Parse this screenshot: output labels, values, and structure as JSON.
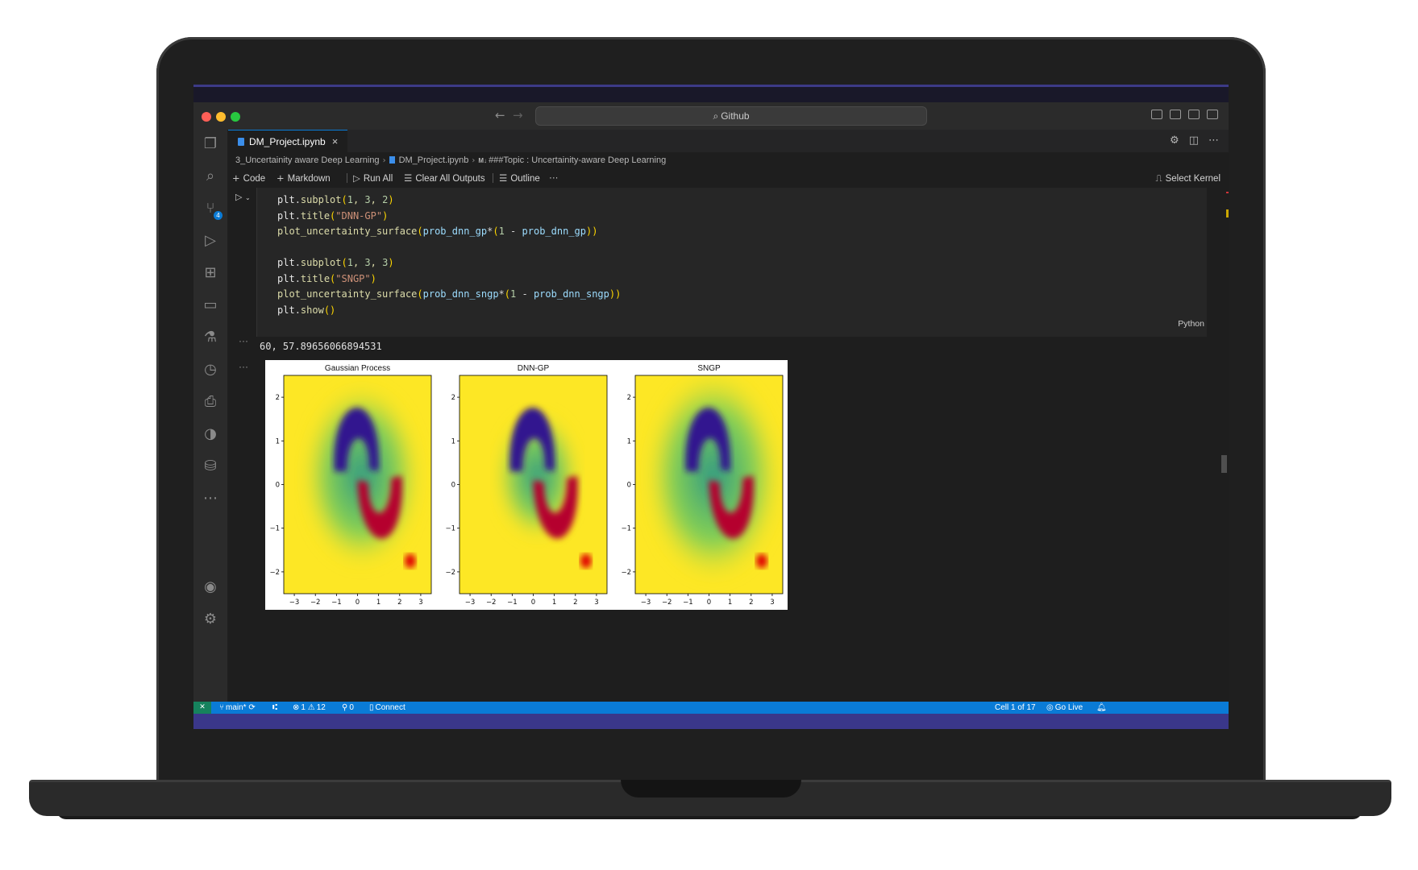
{
  "window": {
    "search_text": "Github"
  },
  "tab": {
    "label": "DM_Project.ipynb",
    "close": "×"
  },
  "breadcrumb": {
    "folder": "3_Uncertainity aware Deep Learning",
    "file": "DM_Project.ipynb",
    "section_prefix": "M↓",
    "section": "###Topic : Uncertainity-aware Deep Learning"
  },
  "toolbar": {
    "code": "Code",
    "markdown": "Markdown",
    "run_all": "Run All",
    "clear_all_outputs": "Clear All Outputs",
    "outline": "Outline",
    "more": "···",
    "select_kernel": "Select Kernel"
  },
  "cell": {
    "language": "Python"
  },
  "output": {
    "text": "60, 57.89656066894531",
    "dots": "···"
  },
  "figure": {
    "titles": [
      "Gaussian Process",
      "DNN-GP",
      "SNGP"
    ],
    "x_ticks": [
      "−3",
      "−2",
      "−1",
      "0",
      "1",
      "2",
      "3"
    ],
    "y_ticks": [
      "2",
      "1",
      "0",
      "−1",
      "−2"
    ]
  },
  "statusbar": {
    "branch": "main*",
    "errors": "1",
    "warnings": "12",
    "ports": "0",
    "connect": "Connect",
    "cell_position": "Cell 1 of 17",
    "go_live": "Go Live"
  },
  "icons": {
    "activity": [
      "explorer-icon",
      "search-icon",
      "source-control-icon",
      "run-debug-icon",
      "extensions-icon",
      "remote-explorer-icon",
      "testing-icon",
      "timeline-icon",
      "settings-sync-icon",
      "git-graph-icon",
      "database-icon",
      "more-icon",
      "account-icon",
      "manage-gear-icon"
    ]
  },
  "colors": {
    "statusbar": "#0a7bd6",
    "remote": "#16825d",
    "surface_yellow": "#fde725",
    "class_blue": "#30138f",
    "class_red": "#b5002e"
  }
}
